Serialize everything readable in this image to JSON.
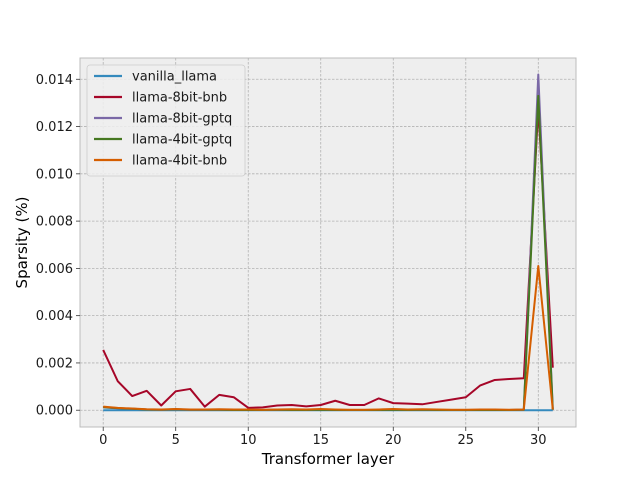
{
  "chart_data": {
    "type": "line",
    "xlabel": "Transformer layer",
    "ylabel": "Sparsity (%)",
    "xlim": [
      -1.6,
      32.6
    ],
    "ylim": [
      -0.00071,
      0.0149
    ],
    "xticks": [
      0,
      5,
      10,
      15,
      20,
      25,
      30
    ],
    "yticks": [
      0.0,
      0.002,
      0.004,
      0.006,
      0.008,
      0.01,
      0.012,
      0.014
    ],
    "ytick_labels": [
      "0.000",
      "0.002",
      "0.004",
      "0.006",
      "0.008",
      "0.010",
      "0.012",
      "0.014"
    ],
    "grid": true,
    "legend_position": "top-left",
    "x": [
      0,
      1,
      2,
      3,
      4,
      5,
      6,
      7,
      8,
      9,
      10,
      11,
      12,
      13,
      14,
      15,
      16,
      17,
      18,
      19,
      20,
      21,
      22,
      23,
      24,
      25,
      26,
      27,
      28,
      29,
      30,
      31
    ],
    "series": [
      {
        "name": "vanilla_llama",
        "color": "#348ABD",
        "values": [
          0,
          0,
          0,
          0,
          0,
          0,
          0,
          0,
          0,
          0,
          0,
          0,
          0,
          0,
          0,
          0,
          0,
          0,
          0,
          0,
          0,
          0,
          0,
          0,
          0,
          0,
          0,
          0,
          0,
          0,
          0,
          0
        ]
      },
      {
        "name": "llama-8bit-bnb",
        "color": "#A60628",
        "values": [
          0.00255,
          0.00123,
          0.0006,
          0.00082,
          0.0002,
          0.0008,
          0.0009,
          0.00015,
          0.00065,
          0.00055,
          0.0001,
          0.00012,
          0.0002,
          0.00022,
          0.00016,
          0.00022,
          0.0004,
          0.00022,
          0.00022,
          0.0005,
          0.0003,
          0.00028,
          0.00025,
          0.00035,
          0.00045,
          0.00055,
          0.00105,
          0.00128,
          0.00132,
          0.00135,
          0.0128,
          0.0018
        ]
      },
      {
        "name": "llama-8bit-gptq",
        "color": "#7A68A6",
        "values": [
          0.00012,
          8e-05,
          6e-05,
          3e-05,
          2e-05,
          3e-05,
          2e-05,
          2e-05,
          2e-05,
          1e-05,
          1e-05,
          1e-05,
          2e-05,
          1e-05,
          1e-05,
          2e-05,
          1e-05,
          1e-05,
          1e-05,
          1e-05,
          2e-05,
          1e-05,
          2e-05,
          1e-05,
          1e-05,
          1e-05,
          1e-05,
          1e-05,
          1e-05,
          2e-05,
          0.0142,
          2e-05
        ]
      },
      {
        "name": "llama-4bit-gptq",
        "color": "#467821",
        "values": [
          0.00013,
          9e-05,
          6e-05,
          3e-05,
          2e-05,
          4e-05,
          2e-05,
          2e-05,
          2e-05,
          1e-05,
          1e-05,
          1e-05,
          2e-05,
          1e-05,
          1e-05,
          2e-05,
          1e-05,
          1e-05,
          1e-05,
          1e-05,
          2e-05,
          1e-05,
          2e-05,
          1e-05,
          1e-05,
          1e-05,
          1e-05,
          1e-05,
          1e-05,
          2e-05,
          0.0133,
          2e-05
        ]
      },
      {
        "name": "llama-4bit-bnb",
        "color": "#D55E00",
        "values": [
          0.00015,
          0.0001,
          7e-05,
          4e-05,
          3e-05,
          5e-05,
          3e-05,
          3e-05,
          4e-05,
          3e-05,
          3e-05,
          2e-05,
          3e-05,
          4e-05,
          3e-05,
          5e-05,
          3e-05,
          2e-05,
          2e-05,
          3e-05,
          5e-05,
          3e-05,
          4e-05,
          3e-05,
          2e-05,
          2e-05,
          3e-05,
          3e-05,
          2e-05,
          3e-05,
          0.0061,
          3e-05
        ]
      }
    ]
  }
}
